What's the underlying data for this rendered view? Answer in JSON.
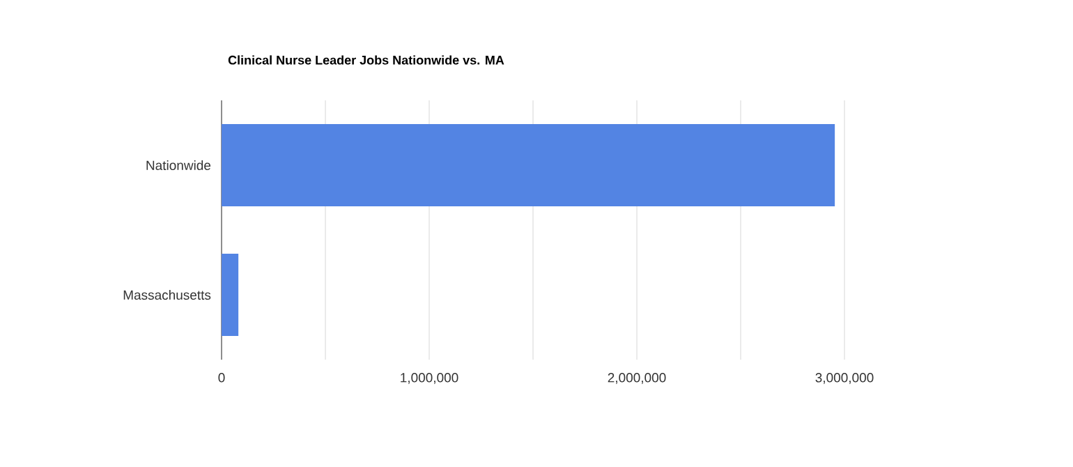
{
  "chart_data": {
    "type": "bar",
    "orientation": "horizontal",
    "title": "Clinical Nurse Leader Jobs Nationwide vs. MA",
    "categories": [
      "Nationwide",
      "Massachusetts"
    ],
    "values": [
      2954000,
      81000
    ],
    "color": "#5384e3",
    "xlim": [
      0,
      3000000
    ],
    "xticks": [
      {
        "value": 0,
        "label": "0"
      },
      {
        "value": 500000,
        "label": null
      },
      {
        "value": 1000000,
        "label": "1,000,000"
      },
      {
        "value": 1500000,
        "label": null
      },
      {
        "value": 2000000,
        "label": "2,000,000"
      },
      {
        "value": 2500000,
        "label": null
      },
      {
        "value": 3000000,
        "label": "3,000,000"
      }
    ],
    "grid": "x"
  }
}
